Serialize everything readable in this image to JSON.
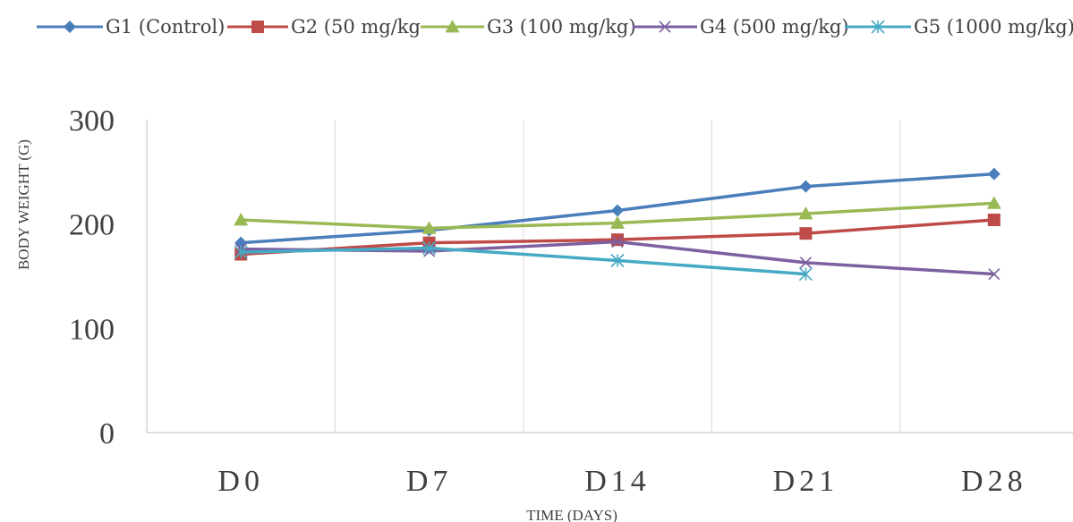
{
  "chart_data": {
    "type": "line",
    "categories": [
      "D0",
      "D7",
      "D14",
      "D21",
      "D28"
    ],
    "xlabel": "TIME (DAYS)",
    "ylabel": "BODY WEIGHT (G)",
    "ylim": [
      0,
      300
    ],
    "yticks": [
      "0",
      "100",
      "200",
      "300"
    ],
    "grid": "vertical",
    "legend_position": "top",
    "series": [
      {
        "name": "G1 (Control)",
        "color": "#4a7ebb",
        "marker": "diamond",
        "values": [
          182,
          194,
          213,
          236,
          248
        ]
      },
      {
        "name": "G2 (50 mg/kg",
        "color": "#be4b48",
        "marker": "square",
        "values": [
          171,
          182,
          185,
          191,
          204
        ]
      },
      {
        "name": "G3 (100 mg/kg)",
        "color": "#98b954",
        "marker": "triangle",
        "values": [
          204,
          196,
          201,
          210,
          220
        ]
      },
      {
        "name": "G4 (500 mg/kg)",
        "color": "#7d60a0",
        "marker": "x",
        "values": [
          176,
          174,
          183,
          163,
          152
        ]
      },
      {
        "name": "G5 (1000 mg/kg)",
        "color": "#46aac5",
        "marker": "star",
        "values": [
          173,
          177,
          165,
          152,
          null
        ]
      }
    ]
  }
}
